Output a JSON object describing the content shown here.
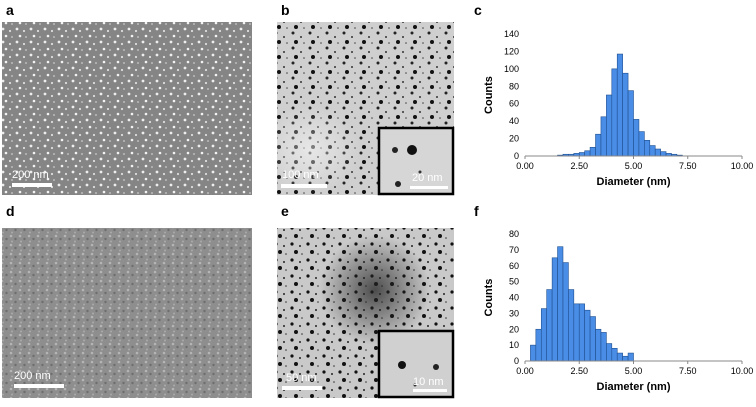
{
  "panels": {
    "a": {
      "letter": "a",
      "scale": "200 nm"
    },
    "b": {
      "letter": "b",
      "scale": "100 nm",
      "inset_scale": "20 nm"
    },
    "c": {
      "letter": "c"
    },
    "d": {
      "letter": "d",
      "scale": "200 nm"
    },
    "e": {
      "letter": "e",
      "scale": "50 nm",
      "inset_scale": "10 nm"
    },
    "f": {
      "letter": "f"
    }
  },
  "chart_data": [
    {
      "type": "histogram",
      "xlabel": "Diameter (nm)",
      "ylabel": "Counts",
      "color": "#4a8de6",
      "bins": [
        1.5,
        1.75,
        2.0,
        2.25,
        2.5,
        2.75,
        3.0,
        3.25,
        3.5,
        3.75,
        4.0,
        4.25,
        4.5,
        4.75,
        5.0,
        5.25,
        5.5,
        5.75,
        6.0,
        6.25,
        6.5,
        6.75,
        7.0,
        7.25
      ],
      "values": [
        1,
        2,
        2,
        3,
        4,
        6,
        10,
        25,
        45,
        70,
        100,
        117,
        95,
        75,
        42,
        28,
        18,
        12,
        8,
        5,
        3,
        2,
        1
      ],
      "xlim": [
        0,
        10
      ],
      "ylim": [
        0,
        140
      ],
      "xticks": [
        {
          "value": 0,
          "label": "0.00"
        },
        {
          "value": 2.5,
          "label": "2.50"
        },
        {
          "value": 5,
          "label": "5.00"
        },
        {
          "value": 7.5,
          "label": "7.50"
        },
        {
          "value": 10,
          "label": "10.00"
        }
      ],
      "yticks": [
        0,
        20,
        40,
        60,
        80,
        100,
        120,
        140
      ]
    },
    {
      "type": "histogram",
      "xlabel": "Diameter (nm)",
      "ylabel": "Counts",
      "color": "#4a8de6",
      "bins": [
        0.25,
        0.5,
        0.75,
        1.0,
        1.25,
        1.5,
        1.75,
        2.0,
        2.25,
        2.5,
        2.75,
        3.0,
        3.25,
        3.5,
        3.75,
        4.0,
        4.25,
        4.5,
        4.75,
        5.0
      ],
      "values": [
        10,
        20,
        33,
        45,
        65,
        72,
        62,
        45,
        36,
        36,
        32,
        28,
        20,
        18,
        11,
        8,
        5,
        3,
        5
      ],
      "xlim": [
        0,
        10
      ],
      "ylim": [
        0,
        80
      ],
      "xticks": [
        {
          "value": 0,
          "label": "0.00"
        },
        {
          "value": 2.5,
          "label": "2.50"
        },
        {
          "value": 5,
          "label": "5.00"
        },
        {
          "value": 7.5,
          "label": "7.50"
        },
        {
          "value": 10,
          "label": "10.00"
        }
      ],
      "yticks": [
        0,
        10,
        20,
        30,
        40,
        50,
        60,
        70,
        80
      ]
    }
  ]
}
